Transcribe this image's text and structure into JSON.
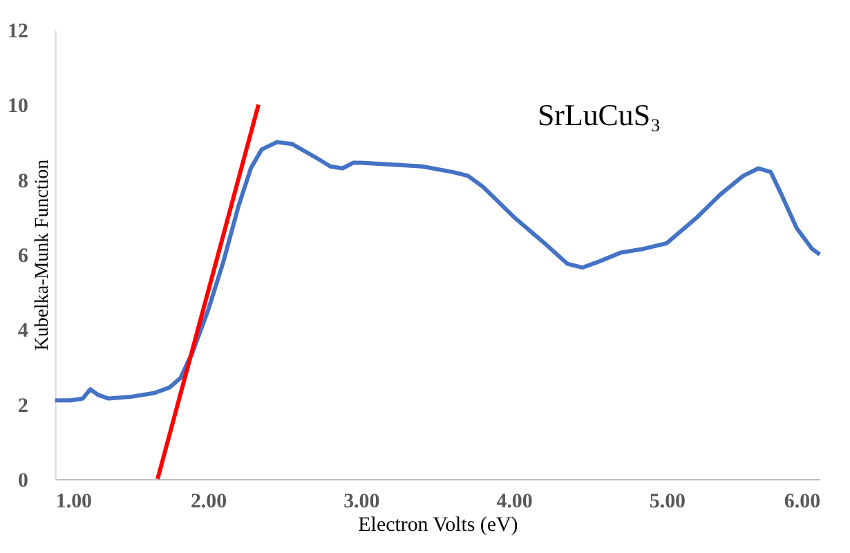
{
  "chart_data": {
    "type": "line",
    "xlabel": "Electron Volts (eV)",
    "ylabel": "Kubelka-Munk Function",
    "xlim": [
      1.0,
      6.0
    ],
    "xticks": [
      {
        "value": 1,
        "label": "1.00"
      },
      {
        "value": 2,
        "label": "2.00"
      },
      {
        "value": 3,
        "label": "3.00"
      },
      {
        "value": 4,
        "label": "4.00"
      },
      {
        "value": 5,
        "label": "5.00"
      },
      {
        "value": 6,
        "label": "6.00"
      }
    ],
    "ylim": [
      0,
      12
    ],
    "yticks": [
      0,
      2,
      4,
      6,
      8,
      10,
      12
    ],
    "grid": false,
    "marker": "none",
    "line_style": "solid",
    "annotations": [
      "SrLuCuS₃"
    ],
    "series": [
      {
        "color": "#4472c4",
        "x": [
          1.0,
          1.1,
          1.18,
          1.23,
          1.28,
          1.35,
          1.5,
          1.65,
          1.75,
          1.82,
          1.9,
          2.0,
          2.1,
          2.2,
          2.28,
          2.35,
          2.45,
          2.55,
          2.7,
          2.8,
          2.88,
          2.95,
          3.0,
          3.2,
          3.4,
          3.6,
          3.7,
          3.8,
          4.0,
          4.2,
          4.35,
          4.45,
          4.55,
          4.7,
          4.85,
          5.0,
          5.2,
          5.35,
          5.5,
          5.6,
          5.68,
          5.75,
          5.85,
          5.95,
          6.0
        ],
        "values": [
          2.1,
          2.1,
          2.15,
          2.4,
          2.25,
          2.15,
          2.2,
          2.3,
          2.45,
          2.7,
          3.4,
          4.5,
          5.8,
          7.3,
          8.3,
          8.8,
          9.0,
          8.95,
          8.6,
          8.35,
          8.3,
          8.45,
          8.45,
          8.4,
          8.35,
          8.2,
          8.1,
          7.8,
          7.0,
          6.3,
          5.75,
          5.65,
          5.8,
          6.05,
          6.15,
          6.3,
          7.0,
          7.6,
          8.1,
          8.3,
          8.2,
          7.6,
          6.7,
          6.15,
          6.0
        ]
      },
      {
        "color": "#ff0000",
        "x": [
          1.67,
          2.33
        ],
        "values": [
          0,
          10
        ]
      }
    ]
  }
}
